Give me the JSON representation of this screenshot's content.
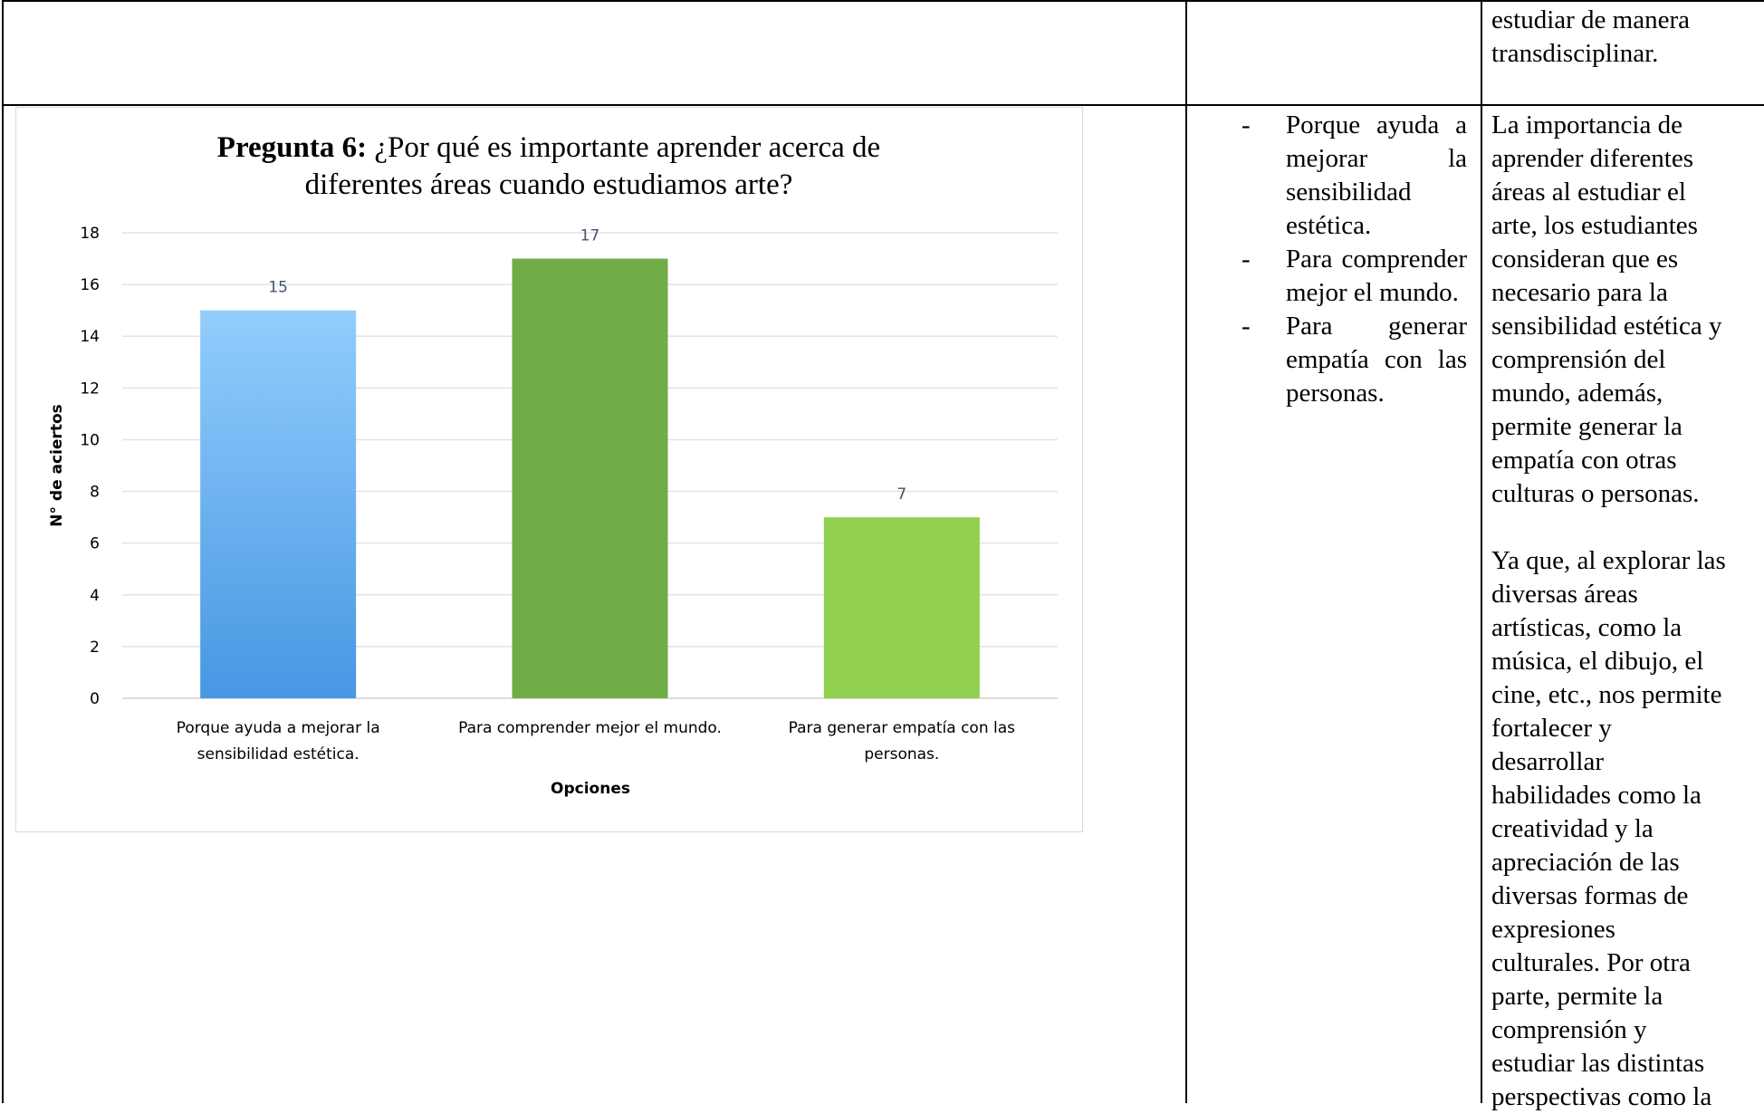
{
  "top_row": {
    "col3_text": "estudiar de manera transdisciplinar.",
    "col3_lines": [
      "estudiar de manera",
      "transdisciplinar."
    ]
  },
  "chart_data": {
    "type": "bar",
    "title_bold": "Pregunta 6:",
    "title_rest_line1": " ¿Por qué es importante aprender acerca de",
    "title_line2": "diferentes áreas cuando estudiamos arte?",
    "categories": [
      [
        "Porque ayuda a mejorar la",
        "sensibilidad estética."
      ],
      [
        "Para comprender mejor el mundo."
      ],
      [
        "Para generar empatía con las",
        "personas."
      ]
    ],
    "values": [
      15,
      17,
      7
    ],
    "colors": [
      "#5aa7ee",
      "#70ad47",
      "#92d050"
    ],
    "xlabel": "Opciones",
    "ylabel": "N° de aciertos",
    "ylim": [
      0,
      18
    ],
    "yticks": [
      0,
      2,
      4,
      6,
      8,
      10,
      12,
      14,
      16,
      18
    ],
    "grid": true,
    "data_labels": true
  },
  "mid_row": {
    "bullets": [
      "Porque ayuda a mejorar la sensibilidad estética.",
      "Para comprender mejor el mundo.",
      "Para generar empatía con las personas."
    ],
    "analysis_p1_lines": [
      "La importancia de",
      "aprender diferentes",
      "áreas al estudiar el",
      "arte, los estudiantes",
      "consideran que es",
      "necesario para la",
      "sensibilidad estética y",
      "comprensión del",
      "mundo, además,",
      "permite generar la",
      "empatía con otras",
      "culturas o personas."
    ],
    "analysis_p2_lines": [
      "Ya que, al explorar las",
      "diversas áreas",
      "artísticas, como la",
      "música, el dibujo, el",
      "cine, etc., nos permite",
      "fortalecer y",
      "desarrollar",
      "habilidades como la",
      "creatividad y la",
      "apreciación de las",
      "diversas formas de",
      "expresiones",
      "culturales. Por otra",
      "parte, permite la",
      "comprensión y",
      "estudiar las distintas",
      "perspectivas como la"
    ]
  }
}
